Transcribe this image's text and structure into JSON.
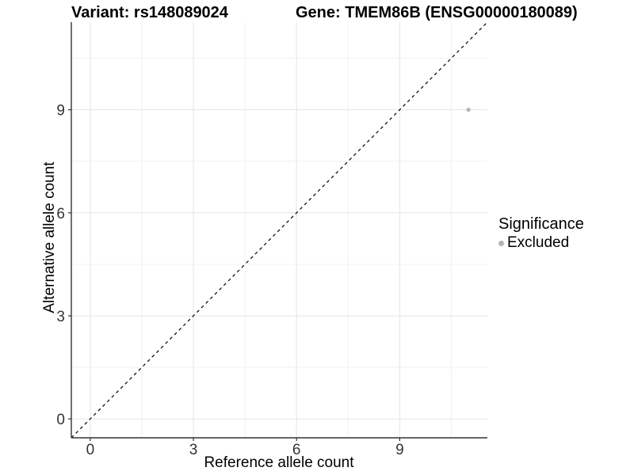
{
  "chart_data": {
    "type": "scatter",
    "titles": {
      "left": "Variant: rs148089024",
      "right": "Gene: TMEM86B (ENSG00000180089)"
    },
    "xlabel": "Reference allele count",
    "ylabel": "Alternative allele count",
    "xlim": [
      -0.55,
      11.55
    ],
    "ylim": [
      -0.55,
      11.55
    ],
    "x_major_ticks": [
      0,
      3,
      6,
      9
    ],
    "y_major_ticks": [
      0,
      3,
      6,
      9
    ],
    "x_minor_ticks": [
      1.5,
      4.5,
      7.5,
      10.5
    ],
    "y_minor_ticks": [
      1.5,
      4.5,
      7.5,
      10.5
    ],
    "grid": true,
    "reference_line": {
      "type": "identity",
      "style": "dashed",
      "color": "#000000"
    },
    "points": [
      {
        "x": 11,
        "y": 9,
        "series": "Excluded"
      }
    ],
    "legend": {
      "title": "Significance",
      "position": "right",
      "items": [
        {
          "label": "Excluded",
          "color": "#b5b5b5"
        }
      ]
    },
    "colors": {
      "point": "#b5b5b5",
      "axis_line": "#333333",
      "tick_mark": "#333333",
      "tick_label": "#333333",
      "grid_major": "#e5e5e5",
      "grid_minor": "#f0f0f0",
      "background": "#ffffff"
    }
  }
}
